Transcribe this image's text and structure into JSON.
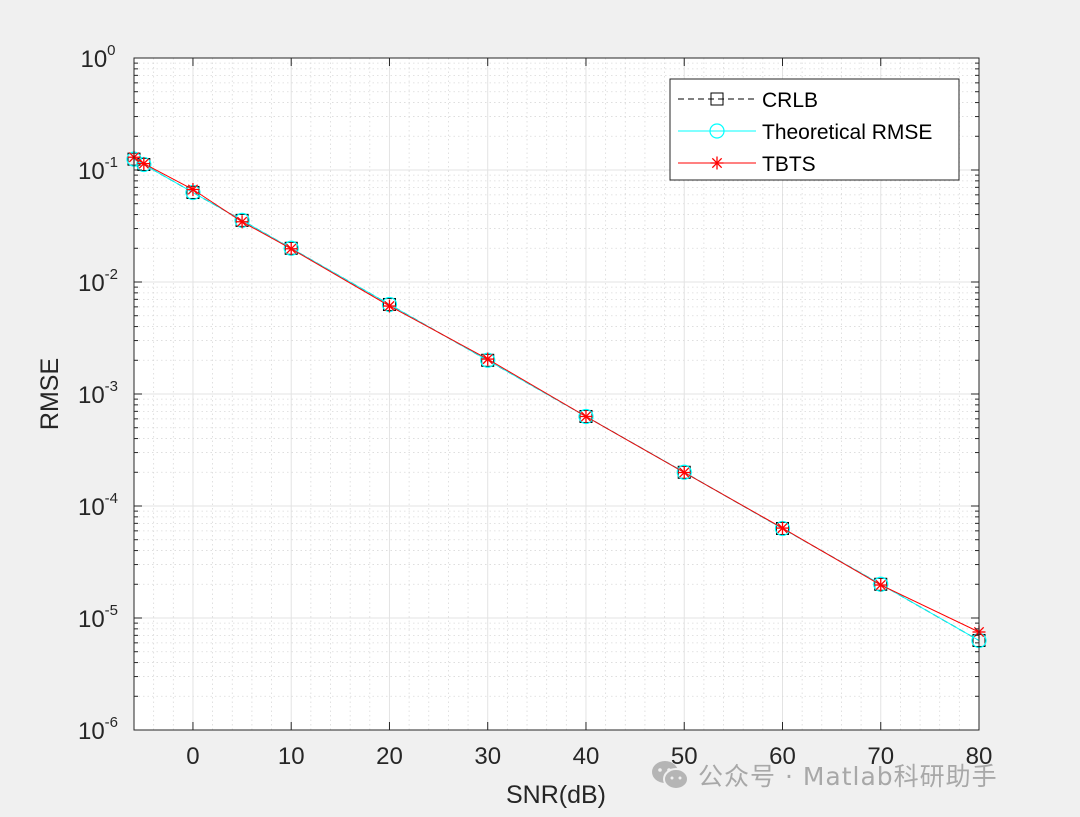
{
  "chart_data": {
    "type": "line",
    "xlabel": "SNR(dB)",
    "ylabel": "RMSE",
    "xlim": [
      -6,
      80
    ],
    "ylim": [
      1e-06,
      1
    ],
    "yscale": "log",
    "grid": true,
    "minor_grid": true,
    "legend_position": "top-right",
    "x_ticks": [
      0,
      10,
      20,
      30,
      40,
      50,
      60,
      70,
      80
    ],
    "y_tick_exponents": [
      -6,
      -5,
      -4,
      -3,
      -2,
      -1,
      0
    ],
    "x": [
      -6,
      -5,
      0,
      5,
      10,
      20,
      30,
      40,
      50,
      60,
      70,
      80
    ],
    "series": [
      {
        "name": "CRLB",
        "color": "#000000",
        "line_style": "dashed",
        "marker": "square",
        "values": [
          0.125,
          0.112,
          0.063,
          0.0355,
          0.02,
          0.0063,
          0.002,
          0.00063,
          0.0002,
          6.3e-05,
          2e-05,
          6.3e-06
        ]
      },
      {
        "name": "Theoretical RMSE",
        "color": "#00ffff",
        "line_style": "solid",
        "marker": "circle",
        "values": [
          0.125,
          0.112,
          0.063,
          0.0355,
          0.02,
          0.0063,
          0.002,
          0.00063,
          0.0002,
          6.3e-05,
          2e-05,
          6.3e-06
        ]
      },
      {
        "name": "TBTS",
        "color": "#ff0000",
        "line_style": "solid",
        "marker": "asterisk",
        "values": [
          0.13,
          0.114,
          0.067,
          0.0345,
          0.0198,
          0.0061,
          0.00205,
          0.00063,
          0.000199,
          6.35e-05,
          1.97e-05,
          7.5e-06
        ]
      }
    ]
  },
  "watermark": {
    "text": "公众号 · Matlab科研助手",
    "icon": "wechat-icon"
  }
}
